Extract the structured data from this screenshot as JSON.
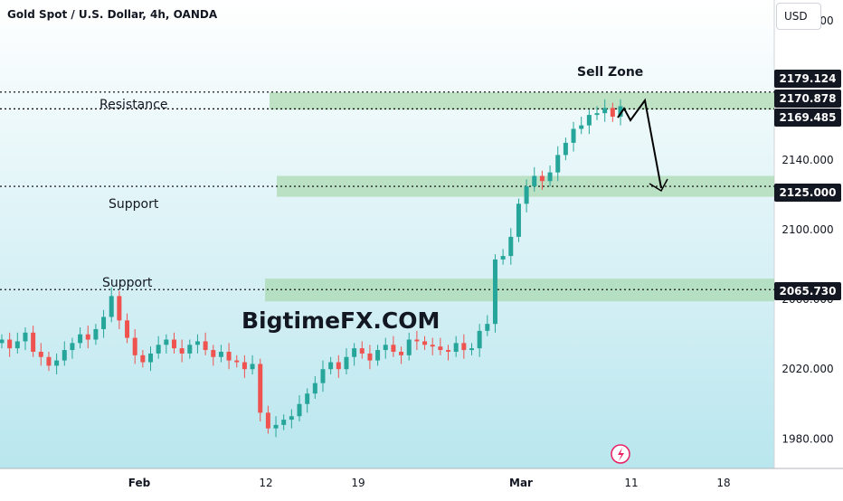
{
  "header": {
    "title": "Gold Spot / U.S. Dollar, 4h, OANDA",
    "currency_button": "USD"
  },
  "annotations": {
    "sell_zone": "Sell Zone",
    "resistance": "Resistance",
    "support_1": "Support",
    "support_2": "Support",
    "watermark": "BigtimeFX.COM"
  },
  "chart_data": {
    "type": "candlestick",
    "symbol": "Gold Spot / U.S. Dollar",
    "interval": "4h",
    "source": "OANDA",
    "ylim": [
      1963,
      2232
    ],
    "y_ticks": [
      1980.0,
      2020.0,
      2060.0,
      2100.0,
      2140.0,
      2220.0
    ],
    "x_ticks": [
      "Feb",
      "12",
      "19",
      "Mar",
      "11",
      "18"
    ],
    "price_levels": [
      {
        "value": 2179.124,
        "label": "2179.124",
        "style": "black"
      },
      {
        "value": 2170.878,
        "label": "2170.878",
        "style": "black"
      },
      {
        "value": 2169.485,
        "label": "2169.485",
        "style": "black"
      },
      {
        "value": 2125.0,
        "label": "2125.000",
        "style": "black"
      },
      {
        "value": 2065.73,
        "label": "2065.730",
        "style": "black"
      }
    ],
    "zones": [
      {
        "name": "Sell Zone / Resistance",
        "from": 2169.0,
        "to": 2179.0
      },
      {
        "name": "Support",
        "from": 2119.0,
        "to": 2131.0
      },
      {
        "name": "Support",
        "from": 2059.0,
        "to": 2072.0
      }
    ],
    "close_path": [
      2037,
      2032,
      2036,
      2041,
      2030,
      2027,
      2022,
      2025,
      2031,
      2035,
      2040,
      2037,
      2043,
      2050,
      2062,
      2048,
      2038,
      2028,
      2024,
      2029,
      2034,
      2037,
      2032,
      2029,
      2034,
      2036,
      2031,
      2027,
      2030,
      2025,
      2024,
      2020,
      2023,
      1995,
      1986,
      1988,
      1991,
      1993,
      2000,
      2006,
      2012,
      2020,
      2024,
      2020,
      2027,
      2032,
      2029,
      2025,
      2031,
      2034,
      2030,
      2028,
      2037,
      2036,
      2034,
      2033,
      2031,
      2030,
      2035,
      2031,
      2032,
      2042,
      2046,
      2083,
      2085,
      2096,
      2115,
      2125,
      2131,
      2128,
      2133,
      2143,
      2150,
      2158,
      2160,
      2166,
      2167,
      2170,
      2165,
      2171
    ]
  }
}
